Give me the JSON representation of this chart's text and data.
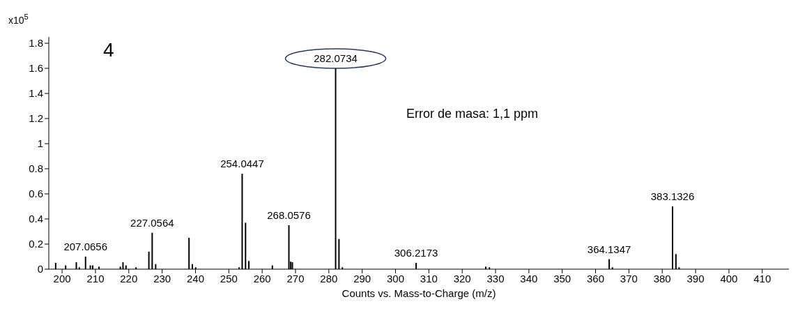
{
  "chart_data": {
    "type": "bar",
    "ylabel": "x10$^{5}$",
    "xlabel": "Counts vs. Mass-to-Charge (m/z)",
    "x": [
      198.1,
      201.1,
      204.3,
      205.2,
      207.0656,
      208.5,
      209.2,
      211.1,
      217.5,
      218.3,
      219.2,
      222.2,
      226.06,
      227.0564,
      228.1,
      238.1,
      239.1,
      240.1,
      253.1,
      254.0447,
      255.05,
      256.05,
      263.1,
      268.0576,
      268.6,
      269.1,
      282.0734,
      283.08,
      284.1,
      306.2173,
      327.1,
      328.2,
      364.1347,
      365.1,
      383.1326,
      384.14,
      385.1
    ],
    "values": [
      0.05,
      0.03,
      0.055,
      0.015,
      0.1,
      0.03,
      0.03,
      0.02,
      0.02,
      0.055,
      0.03,
      0.015,
      0.14,
      0.29,
      0.04,
      0.25,
      0.04,
      0.015,
      0.015,
      0.76,
      0.37,
      0.065,
      0.03,
      0.35,
      0.06,
      0.055,
      1.6,
      0.24,
      0.015,
      0.05,
      0.02,
      0.015,
      0.08,
      0.015,
      0.5,
      0.12,
      0.015
    ],
    "color": "#000000",
    "xlim": [
      196,
      418
    ],
    "xticks": [
      200,
      210,
      220,
      230,
      240,
      250,
      260,
      270,
      280,
      290,
      300,
      310,
      320,
      330,
      340,
      350,
      360,
      370,
      380,
      390,
      400,
      410
    ],
    "ylim": [
      0,
      1.85
    ],
    "yticks": [
      0,
      0.2,
      0.4,
      0.6,
      0.8,
      1,
      1.2,
      1.4,
      1.6,
      1.8
    ],
    "annotations": [
      "4",
      "Error de masa: 1,1 ppm",
      {
        "text": "207.0656",
        "x": 207.0656,
        "y": 0.1
      },
      {
        "text": "227.0564",
        "x": 227.0564,
        "y": 0.29
      },
      {
        "text": "254.0447",
        "x": 254.0447,
        "y": 0.76
      },
      {
        "text": "268.0576",
        "x": 268.0576,
        "y": 0.35
      },
      {
        "text": "282.0734",
        "x": 282.0734,
        "y": 1.6
      },
      {
        "text": "306.2173",
        "x": 306.2173,
        "y": 0.05
      },
      {
        "text": "364.1347",
        "x": 364.1347,
        "y": 0.08
      },
      {
        "text": "383.1326",
        "x": 383.1326,
        "y": 0.5
      }
    ]
  }
}
